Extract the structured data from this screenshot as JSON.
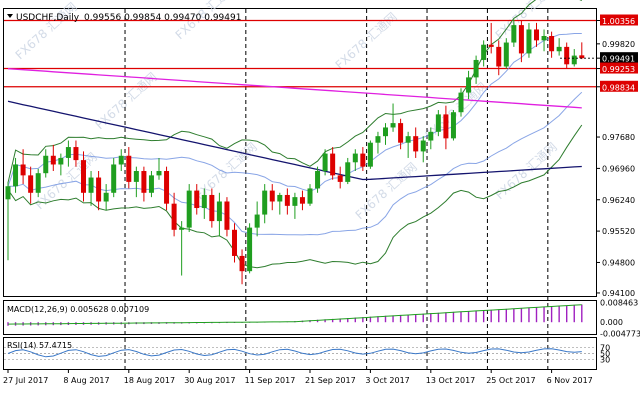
{
  "header": {
    "symbol": "USDCHF,Daily",
    "ohlc": "0.99556 0.99854 0.99470 0.99491"
  },
  "watermark": {
    "text": "FX678 汇通网"
  },
  "macd": {
    "label": "MACD(12,26,9) 0.005628 0.007109",
    "scale": [
      "0.008463",
      "0.000",
      "-0.004773"
    ]
  },
  "rsi": {
    "label": "RSI(14) 57.4715",
    "scale": [
      "100",
      "70",
      "50",
      "30",
      "0"
    ]
  },
  "colors": {
    "bull": "#1f9e1f",
    "bear": "#dd0000",
    "level_line": "#dd0000",
    "ma_pink": "#e020e0",
    "ma_navy": "#14146e",
    "bb_outer": "#2e7d2e",
    "bb_mid": "#6c8fe0",
    "macd_hist": "#a020c0",
    "macd_signal": "#1f9e1f",
    "rsi_line": "#3a78c8"
  },
  "chart_data": {
    "type": "candlestick",
    "symbol": "USDCHF",
    "timeframe": "Daily",
    "x_labels": [
      "27 Jul 2017",
      "8 Aug 2017",
      "18 Aug 2017",
      "30 Aug 2017",
      "11 Sep 2017",
      "21 Sep 2017",
      "3 Oct 2017",
      "13 Oct 2017",
      "25 Oct 2017",
      "6 Nov 2017"
    ],
    "x_label_bar_index": [
      0,
      8,
      16,
      24,
      32,
      40,
      48,
      56,
      64,
      72
    ],
    "y_ticks": [
      "1.00356",
      "0.99820",
      "0.99491",
      "0.99253",
      "0.98834",
      "0.97680",
      "0.96960",
      "0.96240",
      "0.95520",
      "0.94800",
      "0.94100"
    ],
    "ylim": [
      0.9403,
      1.0062
    ],
    "horizontal_levels": [
      1.00356,
      0.99253,
      0.98834
    ],
    "current_price": 0.99491,
    "candles": [
      {
        "o": 0.9625,
        "h": 0.9665,
        "l": 0.9485,
        "c": 0.9655
      },
      {
        "o": 0.9655,
        "h": 0.972,
        "l": 0.964,
        "c": 0.9705
      },
      {
        "o": 0.9705,
        "h": 0.974,
        "l": 0.966,
        "c": 0.968
      },
      {
        "o": 0.968,
        "h": 0.97,
        "l": 0.9615,
        "c": 0.964
      },
      {
        "o": 0.964,
        "h": 0.9695,
        "l": 0.963,
        "c": 0.9685
      },
      {
        "o": 0.9685,
        "h": 0.974,
        "l": 0.9675,
        "c": 0.9725
      },
      {
        "o": 0.9725,
        "h": 0.975,
        "l": 0.969,
        "c": 0.9705
      },
      {
        "o": 0.9705,
        "h": 0.973,
        "l": 0.968,
        "c": 0.972
      },
      {
        "o": 0.972,
        "h": 0.976,
        "l": 0.97,
        "c": 0.9745
      },
      {
        "o": 0.9745,
        "h": 0.976,
        "l": 0.97,
        "c": 0.9715
      },
      {
        "o": 0.9715,
        "h": 0.9735,
        "l": 0.962,
        "c": 0.964
      },
      {
        "o": 0.964,
        "h": 0.969,
        "l": 0.961,
        "c": 0.9675
      },
      {
        "o": 0.9675,
        "h": 0.969,
        "l": 0.96,
        "c": 0.962
      },
      {
        "o": 0.962,
        "h": 0.966,
        "l": 0.96,
        "c": 0.964
      },
      {
        "o": 0.964,
        "h": 0.972,
        "l": 0.963,
        "c": 0.9705
      },
      {
        "o": 0.9705,
        "h": 0.974,
        "l": 0.969,
        "c": 0.9725
      },
      {
        "o": 0.9725,
        "h": 0.9745,
        "l": 0.965,
        "c": 0.9665
      },
      {
        "o": 0.9665,
        "h": 0.97,
        "l": 0.963,
        "c": 0.969
      },
      {
        "o": 0.969,
        "h": 0.97,
        "l": 0.962,
        "c": 0.964
      },
      {
        "o": 0.964,
        "h": 0.969,
        "l": 0.963,
        "c": 0.968
      },
      {
        "o": 0.968,
        "h": 0.972,
        "l": 0.967,
        "c": 0.969
      },
      {
        "o": 0.969,
        "h": 0.97,
        "l": 0.96,
        "c": 0.9615
      },
      {
        "o": 0.9615,
        "h": 0.964,
        "l": 0.954,
        "c": 0.9555
      },
      {
        "o": 0.9555,
        "h": 0.9575,
        "l": 0.945,
        "c": 0.956
      },
      {
        "o": 0.956,
        "h": 0.966,
        "l": 0.955,
        "c": 0.9645
      },
      {
        "o": 0.9645,
        "h": 0.966,
        "l": 0.959,
        "c": 0.9605
      },
      {
        "o": 0.9605,
        "h": 0.965,
        "l": 0.958,
        "c": 0.9635
      },
      {
        "o": 0.9635,
        "h": 0.965,
        "l": 0.956,
        "c": 0.9575
      },
      {
        "o": 0.9575,
        "h": 0.964,
        "l": 0.954,
        "c": 0.962
      },
      {
        "o": 0.962,
        "h": 0.963,
        "l": 0.954,
        "c": 0.9555
      },
      {
        "o": 0.9555,
        "h": 0.957,
        "l": 0.948,
        "c": 0.9495
      },
      {
        "o": 0.9495,
        "h": 0.951,
        "l": 0.943,
        "c": 0.946
      },
      {
        "o": 0.946,
        "h": 0.957,
        "l": 0.9455,
        "c": 0.956
      },
      {
        "o": 0.956,
        "h": 0.962,
        "l": 0.954,
        "c": 0.959
      },
      {
        "o": 0.959,
        "h": 0.966,
        "l": 0.957,
        "c": 0.9645
      },
      {
        "o": 0.9645,
        "h": 0.966,
        "l": 0.96,
        "c": 0.962
      },
      {
        "o": 0.962,
        "h": 0.964,
        "l": 0.959,
        "c": 0.9635
      },
      {
        "o": 0.9635,
        "h": 0.965,
        "l": 0.959,
        "c": 0.961
      },
      {
        "o": 0.961,
        "h": 0.964,
        "l": 0.958,
        "c": 0.963
      },
      {
        "o": 0.963,
        "h": 0.9645,
        "l": 0.96,
        "c": 0.9615
      },
      {
        "o": 0.9615,
        "h": 0.966,
        "l": 0.961,
        "c": 0.965
      },
      {
        "o": 0.965,
        "h": 0.97,
        "l": 0.964,
        "c": 0.969
      },
      {
        "o": 0.969,
        "h": 0.974,
        "l": 0.968,
        "c": 0.973
      },
      {
        "o": 0.973,
        "h": 0.9745,
        "l": 0.967,
        "c": 0.968
      },
      {
        "o": 0.968,
        "h": 0.97,
        "l": 0.965,
        "c": 0.9665
      },
      {
        "o": 0.9665,
        "h": 0.972,
        "l": 0.966,
        "c": 0.971
      },
      {
        "o": 0.971,
        "h": 0.974,
        "l": 0.969,
        "c": 0.973
      },
      {
        "o": 0.973,
        "h": 0.9745,
        "l": 0.969,
        "c": 0.97
      },
      {
        "o": 0.97,
        "h": 0.976,
        "l": 0.9695,
        "c": 0.9755
      },
      {
        "o": 0.9755,
        "h": 0.978,
        "l": 0.973,
        "c": 0.977
      },
      {
        "o": 0.977,
        "h": 0.98,
        "l": 0.975,
        "c": 0.979
      },
      {
        "o": 0.979,
        "h": 0.9845,
        "l": 0.978,
        "c": 0.98
      },
      {
        "o": 0.98,
        "h": 0.981,
        "l": 0.974,
        "c": 0.9755
      },
      {
        "o": 0.9755,
        "h": 0.978,
        "l": 0.972,
        "c": 0.977
      },
      {
        "o": 0.977,
        "h": 0.979,
        "l": 0.972,
        "c": 0.9735
      },
      {
        "o": 0.9735,
        "h": 0.977,
        "l": 0.971,
        "c": 0.976
      },
      {
        "o": 0.976,
        "h": 0.979,
        "l": 0.974,
        "c": 0.978
      },
      {
        "o": 0.978,
        "h": 0.983,
        "l": 0.977,
        "c": 0.982
      },
      {
        "o": 0.982,
        "h": 0.984,
        "l": 0.974,
        "c": 0.9765
      },
      {
        "o": 0.9765,
        "h": 0.983,
        "l": 0.976,
        "c": 0.9825
      },
      {
        "o": 0.9825,
        "h": 0.988,
        "l": 0.9815,
        "c": 0.987
      },
      {
        "o": 0.987,
        "h": 0.992,
        "l": 0.9855,
        "c": 0.9905
      },
      {
        "o": 0.9905,
        "h": 0.9955,
        "l": 0.989,
        "c": 0.9945
      },
      {
        "o": 0.9945,
        "h": 0.999,
        "l": 0.993,
        "c": 0.998
      },
      {
        "o": 0.998,
        "h": 1.003,
        "l": 0.996,
        "c": 0.9975
      },
      {
        "o": 0.9975,
        "h": 0.999,
        "l": 0.991,
        "c": 0.993
      },
      {
        "o": 0.993,
        "h": 0.9995,
        "l": 0.9925,
        "c": 0.9985
      },
      {
        "o": 0.9985,
        "h": 1.0038,
        "l": 0.9975,
        "c": 1.0025
      },
      {
        "o": 1.0025,
        "h": 1.0035,
        "l": 0.994,
        "c": 0.996
      },
      {
        "o": 0.996,
        "h": 1.003,
        "l": 0.995,
        "c": 1.0015
      },
      {
        "o": 1.0015,
        "h": 1.003,
        "l": 0.9975,
        "c": 0.999
      },
      {
        "o": 0.999,
        "h": 1.0015,
        "l": 0.9965,
        "c": 1.0
      },
      {
        "o": 1.0,
        "h": 1.001,
        "l": 0.995,
        "c": 0.9965
      },
      {
        "o": 0.9965,
        "h": 0.9995,
        "l": 0.9955,
        "c": 0.9975
      },
      {
        "o": 0.9975,
        "h": 0.9985,
        "l": 0.9925,
        "c": 0.9935
      },
      {
        "o": 0.9935,
        "h": 0.997,
        "l": 0.993,
        "c": 0.9955
      },
      {
        "o": 0.99556,
        "h": 0.99854,
        "l": 0.9947,
        "c": 0.99491
      }
    ]
  }
}
